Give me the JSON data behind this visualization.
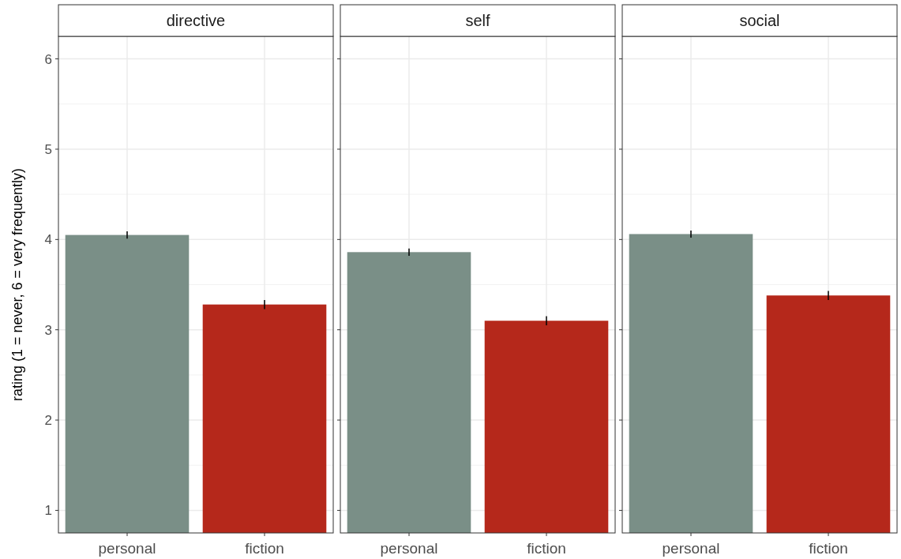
{
  "chart_data": [
    {
      "type": "bar",
      "title": "directive",
      "ylabel": "rating (1 = never, 6 = very frequently)",
      "categories": [
        "personal",
        "fiction"
      ],
      "values": [
        4.05,
        3.28
      ],
      "errors": [
        0.04,
        0.05
      ],
      "colors": [
        "#7a8f87",
        "#b5281b"
      ],
      "ylim": [
        0.75,
        6.25
      ],
      "yticks": [
        1,
        2,
        3,
        4,
        5,
        6
      ],
      "grid": true
    },
    {
      "type": "bar",
      "title": "self",
      "categories": [
        "personal",
        "fiction"
      ],
      "values": [
        3.86,
        3.1
      ],
      "errors": [
        0.04,
        0.05
      ],
      "colors": [
        "#7a8f87",
        "#b5281b"
      ],
      "ylim": [
        0.75,
        6.25
      ],
      "yticks": [
        1,
        2,
        3,
        4,
        5,
        6
      ],
      "grid": true,
      "tick_labels": "x"
    },
    {
      "type": "bar",
      "title": "social",
      "categories": [
        "personal",
        "fiction"
      ],
      "values": [
        4.06,
        3.38
      ],
      "errors": [
        0.04,
        0.05
      ],
      "colors": [
        "#7a8f87",
        "#b5281b"
      ],
      "ylim": [
        0.75,
        6.25
      ],
      "yticks": [
        1,
        2,
        3,
        4,
        5,
        6
      ],
      "grid": true,
      "tick_labels": "x"
    }
  ]
}
